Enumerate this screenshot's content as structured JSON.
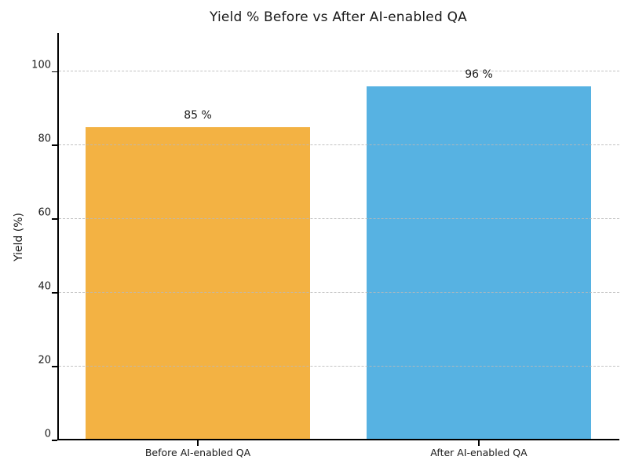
{
  "chart_data": {
    "type": "bar",
    "title": "Yield % Before vs After AI-enabled QA",
    "xlabel": "",
    "ylabel": "Yield (%)",
    "categories": [
      "Before AI-enabled QA",
      "After AI-enabled QA"
    ],
    "values": [
      85,
      96
    ],
    "value_labels": [
      "85 %",
      "96 %"
    ],
    "bar_colors": [
      "#F3B243",
      "#57B2E2"
    ],
    "yticks": [
      0,
      20,
      40,
      60,
      80,
      100
    ],
    "ylim": [
      0,
      110.5
    ],
    "bar_width_fraction": 0.8,
    "grid": "horizontal-dashed",
    "legend": "none",
    "colors": {
      "before_bar": "#F3B243",
      "after_bar": "#57B2E2",
      "gridline": "#b9b9b9",
      "axis": "#000000",
      "text": "#1a1a1a",
      "background": "#ffffff"
    }
  }
}
